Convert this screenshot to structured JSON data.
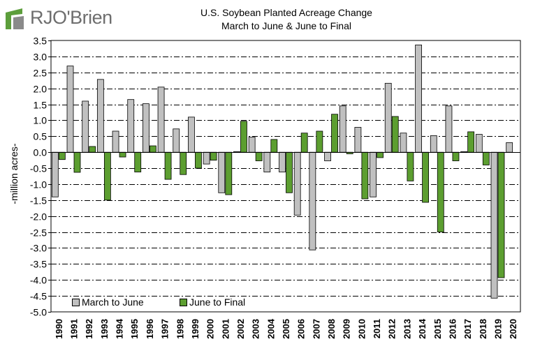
{
  "logo": {
    "text": "RJO'Brien",
    "colors": {
      "mark_green": "#5c9e3b",
      "mark_grey": "#8a8a8a",
      "text": "#6e6e6e"
    }
  },
  "chart_data": {
    "type": "bar",
    "title": "U.S. Soybean Planted Acreage Change",
    "subtitle": "March to June & June to Final",
    "ylabel": "-million acres-",
    "xlabel": "",
    "ylim": [
      -5.0,
      3.5
    ],
    "yticks": [
      3.5,
      3.0,
      2.5,
      2.0,
      1.5,
      1.0,
      0.5,
      0.0,
      -0.5,
      -1.0,
      -1.5,
      -2.0,
      -2.5,
      -3.0,
      -3.5,
      -4.0,
      -4.5,
      -5.0
    ],
    "ytick_labels": [
      "3.5",
      "3.0",
      "2.5",
      "2.0",
      "1.5",
      "1.0",
      "0.5",
      "0.0",
      "-0.5",
      "-1.0",
      "-1.5",
      "-2.0",
      "-2.5",
      "-3.0",
      "-3.5",
      "-4.0",
      "-4.5",
      "-5.0"
    ],
    "grid": true,
    "legend_position": "bottom-left",
    "categories": [
      "1990",
      "1991",
      "1992",
      "1993",
      "1994",
      "1995",
      "1996",
      "1997",
      "1998",
      "1999",
      "2000",
      "2001",
      "2002",
      "2003",
      "2004",
      "2005",
      "2006",
      "2007",
      "2008",
      "2009",
      "2010",
      "2011",
      "2012",
      "2013",
      "2014",
      "2015",
      "2016",
      "2017",
      "2018",
      "2019",
      "2020"
    ],
    "series": [
      {
        "name": "March to June",
        "color": "#c0c0c0",
        "values": [
          -1.4,
          2.7,
          1.6,
          2.28,
          0.66,
          1.65,
          1.52,
          2.04,
          0.73,
          1.1,
          -0.37,
          -1.27,
          0.02,
          0.47,
          -0.62,
          -0.62,
          -1.97,
          -3.06,
          -0.27,
          1.45,
          0.78,
          -1.4,
          2.16,
          0.6,
          3.36,
          0.52,
          1.45,
          0.02,
          0.56,
          -4.57,
          0.3
        ]
      },
      {
        "name": "June to Final",
        "color": "#5c9e30",
        "values": [
          -0.23,
          -0.63,
          0.18,
          -1.5,
          -0.15,
          -0.62,
          0.2,
          -0.85,
          -0.7,
          -0.5,
          -0.25,
          -1.33,
          0.97,
          -0.27,
          0.4,
          -1.27,
          0.6,
          0.66,
          1.19,
          -0.05,
          -1.46,
          -0.17,
          1.12,
          -0.9,
          -1.57,
          -2.5,
          -0.27,
          0.64,
          -0.4,
          -3.93,
          null
        ]
      }
    ]
  }
}
